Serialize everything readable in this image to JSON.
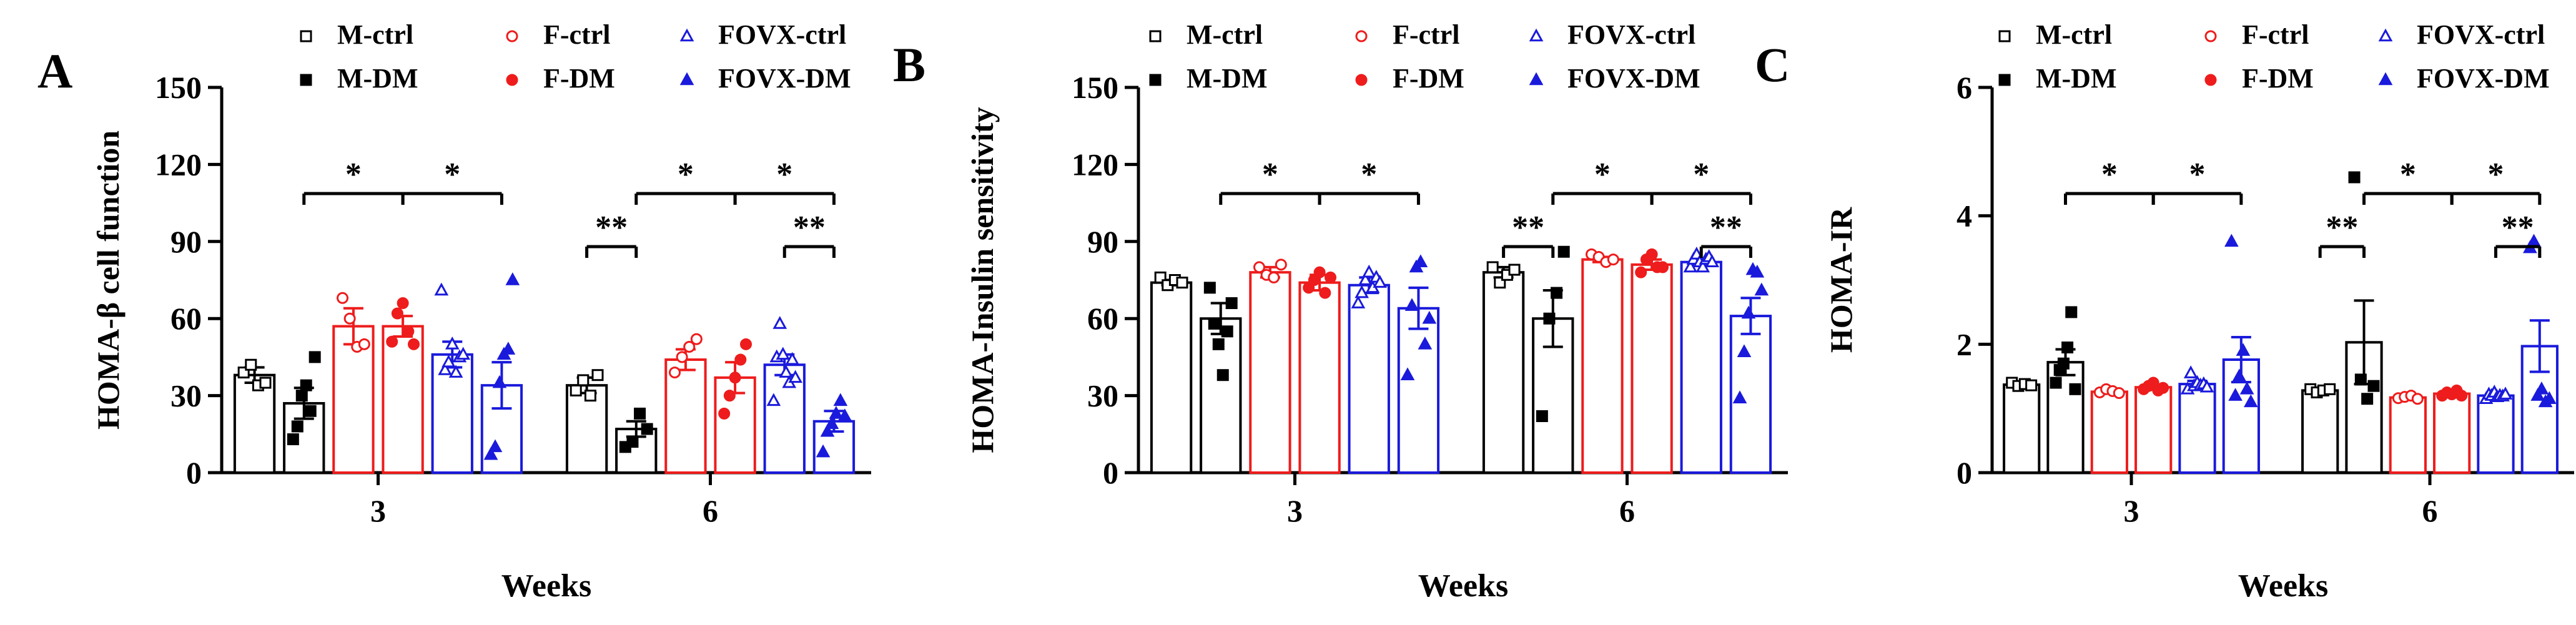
{
  "figure": {
    "x_axis_title": "Weeks",
    "group_labels": [
      "3",
      "6"
    ]
  },
  "legend": {
    "items": [
      {
        "label": "M-ctrl",
        "color": "#000000",
        "marker": "open-square"
      },
      {
        "label": "M-DM",
        "color": "#000000",
        "marker": "filled-square"
      },
      {
        "label": "F-ctrl",
        "color": "#ee1c1c",
        "marker": "open-circle"
      },
      {
        "label": "F-DM",
        "color": "#ee1c1c",
        "marker": "filled-circle"
      },
      {
        "label": "FOVX-ctrl",
        "color": "#1a1adc",
        "marker": "open-triangle"
      },
      {
        "label": "FOVX-DM",
        "color": "#1a1adc",
        "marker": "filled-triangle"
      }
    ]
  },
  "chart_data": [
    {
      "panel_letter": "A",
      "type": "bar",
      "ylabel": "HOMA-β cell function",
      "xlabel": "Weeks",
      "categories": [
        "3",
        "6"
      ],
      "ylim": [
        0,
        150
      ],
      "yticks": [
        "0",
        "30",
        "60",
        "90",
        "120",
        "150"
      ],
      "series": [
        {
          "name": "M-ctrl",
          "values": [
            38,
            34
          ],
          "sem": [
            3,
            3
          ],
          "points": [
            [
              39,
              42,
              34,
              35
            ],
            [
              32,
              36,
              30,
              38
            ]
          ]
        },
        {
          "name": "M-DM",
          "values": [
            27,
            17
          ],
          "sem": [
            6,
            3
          ],
          "points": [
            [
              13,
              18,
              30,
              34,
              24,
              45
            ],
            [
              10,
              12,
              23,
              17
            ]
          ]
        },
        {
          "name": "F-ctrl",
          "values": [
            57,
            44
          ],
          "sem": [
            7,
            4
          ],
          "points": [
            [
              68,
              60,
              49,
              50
            ],
            [
              39,
              45,
              49,
              52
            ]
          ]
        },
        {
          "name": "F-DM",
          "values": [
            57,
            37
          ],
          "sem": [
            4,
            6
          ],
          "points": [
            [
              51,
              62,
              66,
              55,
              50
            ],
            [
              23,
              30,
              37,
              44,
              50
            ]
          ]
        },
        {
          "name": "FOVX-ctrl",
          "values": [
            46,
            42
          ],
          "sem": [
            5,
            4
          ],
          "points": [
            [
              71,
              40,
              43,
              50,
              39,
              45,
              46
            ],
            [
              28,
              45,
              58,
              46,
              39,
              35,
              44,
              37
            ]
          ]
        },
        {
          "name": "FOVX-DM",
          "values": [
            34,
            20
          ],
          "sem": [
            9,
            4
          ],
          "points": [
            [
              7,
              10,
              35,
              46,
              48,
              75
            ],
            [
              8,
              16,
              19,
              23,
              28,
              22
            ]
          ]
        }
      ],
      "significance": [
        {
          "label": "*",
          "week": "3",
          "from": "M-DM",
          "to": "F-DM"
        },
        {
          "label": "*",
          "week": "3",
          "from": "F-DM",
          "to": "FOVX-DM"
        },
        {
          "label": "**",
          "week": "6",
          "from": "M-ctrl",
          "to": "M-DM"
        },
        {
          "label": "*",
          "week": "6",
          "from": "M-DM",
          "to": "F-DM"
        },
        {
          "label": "*",
          "week": "6",
          "from": "F-DM",
          "to": "FOVX-DM"
        },
        {
          "label": "**",
          "week": "6",
          "from": "FOVX-ctrl",
          "to": "FOVX-DM"
        }
      ]
    },
    {
      "panel_letter": "B",
      "type": "bar",
      "ylabel": "HOMA-Insulin sensitivity",
      "xlabel": "Weeks",
      "categories": [
        "3",
        "6"
      ],
      "ylim": [
        0,
        150
      ],
      "yticks": [
        "0",
        "30",
        "60",
        "90",
        "120",
        "150"
      ],
      "series": [
        {
          "name": "M-ctrl",
          "values": [
            74,
            78
          ],
          "sem": [
            1,
            2
          ],
          "points": [
            [
              76,
              73,
              75,
              74
            ],
            [
              80,
              74,
              77,
              79
            ]
          ]
        },
        {
          "name": "M-DM",
          "values": [
            60,
            60
          ],
          "sem": [
            6,
            11
          ],
          "points": [
            [
              72,
              58,
              50,
              38,
              55,
              66
            ],
            [
              22,
              60,
              70,
              86
            ]
          ]
        },
        {
          "name": "F-ctrl",
          "values": [
            78,
            83
          ],
          "sem": [
            2,
            1
          ],
          "points": [
            [
              80,
              77,
              76,
              81
            ],
            [
              85,
              84,
              82,
              83
            ]
          ]
        },
        {
          "name": "F-DM",
          "values": [
            74,
            81
          ],
          "sem": [
            3,
            2
          ],
          "points": [
            [
              72,
              75,
              78,
              70,
              76
            ],
            [
              78,
              83,
              85,
              80,
              80
            ]
          ]
        },
        {
          "name": "FOVX-ctrl",
          "values": [
            73,
            82
          ],
          "sem": [
            3,
            1
          ],
          "points": [
            [
              66,
              70,
              75,
              78,
              72,
              76,
              74
            ],
            [
              80,
              83,
              85,
              82,
              80,
              83,
              84,
              82
            ]
          ]
        },
        {
          "name": "FOVX-DM",
          "values": [
            64,
            61
          ],
          "sem": [
            8,
            7
          ],
          "points": [
            [
              38,
              65,
              80,
              82,
              50,
              60
            ],
            [
              29,
              47,
              62,
              79,
              78,
              71
            ]
          ]
        }
      ],
      "significance": [
        {
          "label": "*",
          "week": "3",
          "from": "M-DM",
          "to": "F-DM"
        },
        {
          "label": "*",
          "week": "3",
          "from": "F-DM",
          "to": "FOVX-DM"
        },
        {
          "label": "**",
          "week": "6",
          "from": "M-ctrl",
          "to": "M-DM"
        },
        {
          "label": "*",
          "week": "6",
          "from": "M-DM",
          "to": "F-DM"
        },
        {
          "label": "*",
          "week": "6",
          "from": "F-DM",
          "to": "FOVX-DM"
        },
        {
          "label": "**",
          "week": "6",
          "from": "FOVX-ctrl",
          "to": "FOVX-DM"
        }
      ]
    },
    {
      "panel_letter": "C",
      "type": "bar",
      "ylabel": "HOMA-IR",
      "xlabel": "Weeks",
      "categories": [
        "3",
        "6"
      ],
      "ylim": [
        0,
        6
      ],
      "yticks": [
        "0",
        "2",
        "4",
        "6"
      ],
      "series": [
        {
          "name": "M-ctrl",
          "values": [
            1.37,
            1.28
          ],
          "sem": [
            0.03,
            0.03
          ],
          "points": [
            [
              1.4,
              1.35,
              1.38,
              1.36
            ],
            [
              1.3,
              1.25,
              1.28,
              1.3
            ]
          ]
        },
        {
          "name": "M-DM",
          "values": [
            1.72,
            2.03
          ],
          "sem": [
            0.2,
            0.65
          ],
          "points": [
            [
              1.4,
              1.6,
              1.7,
              1.95,
              2.5,
              1.3
            ],
            [
              4.6,
              1.45,
              1.15,
              1.35
            ]
          ]
        },
        {
          "name": "F-ctrl",
          "values": [
            1.26,
            1.17
          ],
          "sem": [
            0.02,
            0.02
          ],
          "points": [
            [
              1.25,
              1.3,
              1.27,
              1.24
            ],
            [
              1.16,
              1.18,
              1.2,
              1.15
            ]
          ]
        },
        {
          "name": "F-DM",
          "values": [
            1.33,
            1.23
          ],
          "sem": [
            0.04,
            0.03
          ],
          "points": [
            [
              1.3,
              1.35,
              1.4,
              1.28,
              1.32
            ],
            [
              1.2,
              1.25,
              1.22,
              1.28,
              1.2
            ]
          ]
        },
        {
          "name": "FOVX-ctrl",
          "values": [
            1.38,
            1.2
          ],
          "sem": [
            0.05,
            0.02
          ],
          "points": [
            [
              1.3,
              1.55,
              1.35,
              1.4,
              1.36,
              1.38,
              1.33
            ],
            [
              1.15,
              1.22,
              1.2,
              1.25,
              1.18,
              1.2,
              1.19,
              1.22
            ]
          ]
        },
        {
          "name": "FOVX-DM",
          "values": [
            1.76,
            1.97
          ],
          "sem": [
            0.35,
            0.4
          ],
          "points": [
            [
              3.6,
              1.2,
              1.5,
              1.9,
              1.3,
              1.1
            ],
            [
              3.5,
              3.6,
              1.2,
              1.3,
              1.1,
              1.15
            ]
          ]
        }
      ],
      "significance": [
        {
          "label": "*",
          "week": "3",
          "from": "M-DM",
          "to": "F-DM"
        },
        {
          "label": "*",
          "week": "3",
          "from": "F-DM",
          "to": "FOVX-DM"
        },
        {
          "label": "**",
          "week": "6",
          "from": "M-ctrl",
          "to": "M-DM"
        },
        {
          "label": "*",
          "week": "6",
          "from": "M-DM",
          "to": "F-DM"
        },
        {
          "label": "*",
          "week": "6",
          "from": "F-DM",
          "to": "FOVX-DM"
        },
        {
          "label": "**",
          "week": "6",
          "from": "FOVX-ctrl",
          "to": "FOVX-DM"
        }
      ]
    }
  ]
}
